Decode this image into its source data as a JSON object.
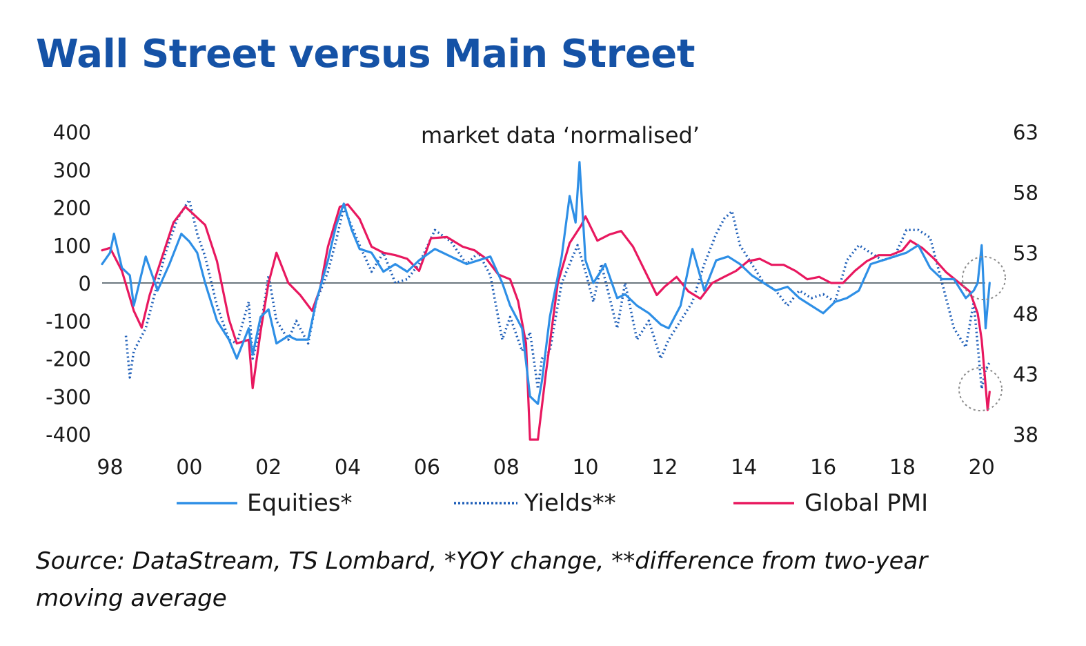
{
  "title": "Wall Street versus Main Street",
  "source": "Source: DataStream, TS Lombard, *YOY change,  **difference from two-year moving average",
  "chart_data": {
    "type": "line",
    "subtitle": "market data ‘normalised’",
    "xlim": [
      1997.8,
      2020.3
    ],
    "x_ticks": [
      1998,
      2000,
      2002,
      2004,
      2006,
      2008,
      2010,
      2012,
      2014,
      2016,
      2018,
      2020
    ],
    "x_tick_labels": [
      "98",
      "00",
      "02",
      "04",
      "06",
      "08",
      "10",
      "12",
      "14",
      "16",
      "18",
      "20"
    ],
    "y_left": {
      "ylim": [
        -400,
        400
      ],
      "ticks": [
        400,
        300,
        200,
        100,
        0,
        -100,
        -200,
        -300,
        -400
      ],
      "tick_labels": [
        "400",
        "300",
        "200",
        "100",
        "0",
        "-100",
        "-200",
        "-300",
        "-400"
      ]
    },
    "y_right": {
      "ylim": [
        38,
        63
      ],
      "ticks": [
        63,
        58,
        53,
        48,
        43,
        38
      ],
      "tick_labels": [
        "63",
        "58",
        "53",
        "48",
        "43",
        "38"
      ]
    },
    "legend_position": "bottom",
    "series": [
      {
        "name": "Equities*",
        "axis": "left",
        "style": "solid",
        "color": "#2e8fe6",
        "x": [
          1997.8,
          1998.0,
          1998.1,
          1998.3,
          1998.5,
          1998.6,
          1998.9,
          1999.2,
          1999.5,
          1999.8,
          2000.0,
          2000.2,
          2000.4,
          2000.7,
          2001.0,
          2001.2,
          2001.5,
          2001.6,
          2001.8,
          2002.0,
          2002.2,
          2002.5,
          2002.7,
          2003.0,
          2003.2,
          2003.5,
          2003.7,
          2003.9,
          2004.1,
          2004.3,
          2004.6,
          2004.9,
          2005.2,
          2005.5,
          2005.8,
          2006.2,
          2006.6,
          2007.0,
          2007.3,
          2007.6,
          2007.9,
          2008.1,
          2008.4,
          2008.6,
          2008.8,
          2008.9,
          2009.1,
          2009.4,
          2009.6,
          2009.75,
          2009.85,
          2010.0,
          2010.2,
          2010.5,
          2010.8,
          2011.0,
          2011.3,
          2011.6,
          2011.9,
          2012.1,
          2012.4,
          2012.7,
          2013.0,
          2013.3,
          2013.6,
          2013.9,
          2014.2,
          2014.5,
          2014.8,
          2015.1,
          2015.4,
          2015.7,
          2016.0,
          2016.3,
          2016.6,
          2016.9,
          2017.2,
          2017.5,
          2017.8,
          2018.1,
          2018.4,
          2018.7,
          2019.0,
          2019.3,
          2019.6,
          2019.8,
          2019.9,
          2020.0,
          2020.1,
          2020.2
        ],
        "y": [
          50,
          80,
          130,
          40,
          20,
          -60,
          70,
          -20,
          50,
          130,
          110,
          80,
          0,
          -100,
          -150,
          -200,
          -120,
          -190,
          -90,
          -70,
          -160,
          -140,
          -150,
          -150,
          -50,
          60,
          150,
          210,
          140,
          90,
          80,
          30,
          50,
          30,
          60,
          90,
          70,
          50,
          60,
          70,
          0,
          -60,
          -120,
          -300,
          -320,
          -260,
          -90,
          70,
          230,
          160,
          320,
          60,
          0,
          50,
          -40,
          -30,
          -60,
          -80,
          -110,
          -120,
          -60,
          90,
          -20,
          60,
          70,
          50,
          20,
          0,
          -20,
          -10,
          -40,
          -60,
          -80,
          -50,
          -40,
          -20,
          50,
          60,
          70,
          80,
          100,
          40,
          10,
          10,
          -40,
          -20,
          0,
          100,
          -120,
          0
        ]
      },
      {
        "name": "Yields**",
        "axis": "left",
        "style": "dotted",
        "color": "#1f5fb8",
        "x": [
          1998.4,
          1998.5,
          1998.6,
          1998.9,
          1999.2,
          1999.4,
          1999.7,
          2000.0,
          2000.2,
          2000.4,
          2000.7,
          2001.0,
          2001.2,
          2001.5,
          2001.6,
          2001.8,
          2002.0,
          2002.2,
          2002.5,
          2002.7,
          2003.0,
          2003.2,
          2003.5,
          2003.7,
          2003.9,
          2004.1,
          2004.3,
          2004.6,
          2004.9,
          2005.2,
          2005.5,
          2005.8,
          2006.2,
          2006.6,
          2007.0,
          2007.3,
          2007.6,
          2007.9,
          2008.1,
          2008.4,
          2008.6,
          2008.8,
          2008.9,
          2009.1,
          2009.4,
          2009.6,
          2009.8,
          2010.0,
          2010.2,
          2010.4,
          2010.8,
          2011.0,
          2011.3,
          2011.6,
          2011.9,
          2012.1,
          2012.4,
          2012.7,
          2013.0,
          2013.3,
          2013.5,
          2013.7,
          2013.9,
          2014.2,
          2014.5,
          2014.8,
          2015.1,
          2015.4,
          2015.7,
          2016.0,
          2016.3,
          2016.6,
          2016.9,
          2017.2,
          2017.5,
          2017.8,
          2018.1,
          2018.4,
          2018.7,
          2019.0,
          2019.3,
          2019.6,
          2019.8,
          2020.0,
          2020.1,
          2020.2
        ],
        "y": [
          -140,
          -250,
          -180,
          -120,
          0,
          80,
          170,
          220,
          130,
          70,
          -60,
          -150,
          -160,
          -50,
          -200,
          -120,
          20,
          -100,
          -150,
          -100,
          -160,
          -50,
          30,
          110,
          200,
          150,
          100,
          30,
          80,
          0,
          10,
          50,
          140,
          110,
          50,
          80,
          20,
          -150,
          -90,
          -180,
          -130,
          -280,
          -200,
          -180,
          0,
          50,
          100,
          30,
          -50,
          50,
          -120,
          0,
          -150,
          -100,
          -200,
          -150,
          -100,
          -50,
          50,
          130,
          170,
          190,
          100,
          50,
          0,
          -20,
          -60,
          -20,
          -40,
          -30,
          -50,
          60,
          100,
          80,
          60,
          70,
          140,
          140,
          120,
          0,
          -120,
          -170,
          -50,
          -280,
          -230,
          -210
        ]
      },
      {
        "name": "Global PMI",
        "axis": "right",
        "style": "solid",
        "color": "#e8185f",
        "x": [
          1997.8,
          1998.0,
          1998.3,
          1998.6,
          1998.8,
          1999.0,
          1999.3,
          1999.6,
          1999.9,
          2000.1,
          2000.4,
          2000.7,
          2001.0,
          2001.2,
          2001.5,
          2001.6,
          2001.8,
          2002.0,
          2002.2,
          2002.5,
          2002.8,
          2003.1,
          2003.3,
          2003.5,
          2003.8,
          2004.0,
          2004.3,
          2004.6,
          2004.9,
          2005.2,
          2005.5,
          2005.8,
          2006.1,
          2006.5,
          2006.9,
          2007.2,
          2007.5,
          2007.8,
          2008.1,
          2008.3,
          2008.5,
          2008.6,
          2008.8,
          2009.0,
          2009.3,
          2009.6,
          2009.9,
          2010.0,
          2010.3,
          2010.6,
          2010.9,
          2011.2,
          2011.5,
          2011.8,
          2012.0,
          2012.3,
          2012.6,
          2012.9,
          2013.2,
          2013.5,
          2013.8,
          2014.1,
          2014.4,
          2014.7,
          2015.0,
          2015.3,
          2015.6,
          2015.9,
          2016.2,
          2016.5,
          2016.8,
          2017.1,
          2017.4,
          2017.7,
          2018.0,
          2018.2,
          2018.5,
          2018.8,
          2019.1,
          2019.4,
          2019.7,
          2019.9,
          2020.0,
          2020.1,
          2020.15,
          2020.2
        ],
        "y": [
          53.2,
          53.4,
          51.5,
          48.2,
          46.8,
          49.5,
          52.5,
          55.5,
          56.8,
          56.2,
          55.3,
          52.3,
          47.5,
          45.5,
          45.8,
          41.8,
          46.5,
          50.5,
          53.0,
          50.5,
          49.5,
          48.2,
          50.0,
          53.5,
          56.8,
          57.0,
          55.8,
          53.5,
          53.0,
          52.8,
          52.5,
          51.5,
          54.2,
          54.3,
          53.5,
          53.2,
          52.5,
          51.2,
          50.8,
          49.0,
          45.5,
          37.5,
          37.5,
          43.0,
          50.5,
          53.8,
          55.3,
          56.0,
          54.0,
          54.5,
          54.8,
          53.5,
          51.5,
          49.5,
          50.2,
          51.0,
          49.8,
          49.2,
          50.5,
          51.0,
          51.5,
          52.3,
          52.5,
          52.0,
          52.0,
          51.5,
          50.8,
          51.0,
          50.5,
          50.5,
          51.5,
          52.3,
          52.8,
          52.8,
          53.2,
          54.0,
          53.4,
          52.5,
          51.4,
          50.6,
          49.8,
          48.0,
          45.8,
          42.0,
          40.0,
          41.5
        ]
      }
    ]
  }
}
